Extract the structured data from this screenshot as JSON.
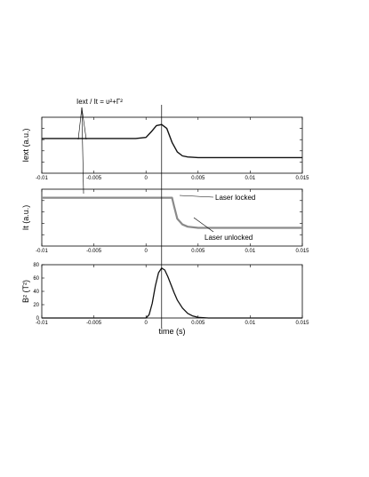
{
  "chart_data": [
    {
      "type": "line",
      "panel": "top",
      "ylabel": "Iext (a.u.)",
      "xlim": [
        -0.01,
        0.015
      ],
      "x_ticks": [
        "-0.01",
        "-0.005",
        "0",
        "0.005",
        "0.01",
        "0.015"
      ],
      "y_ticks": [],
      "annotations": [
        "Iext / It = υ²+Γ²"
      ],
      "series": [
        {
          "x": [
            -0.01,
            -0.005,
            -0.001,
            0.0,
            0.0005,
            0.001,
            0.0015,
            0.002,
            0.0025,
            0.003,
            0.0035,
            0.004,
            0.005,
            0.01,
            0.015
          ],
          "y": [
            0.62,
            0.62,
            0.62,
            0.64,
            0.74,
            0.85,
            0.87,
            0.8,
            0.55,
            0.38,
            0.31,
            0.29,
            0.28,
            0.28,
            0.28
          ]
        }
      ]
    },
    {
      "type": "line",
      "panel": "middle",
      "ylabel": "It (a.u.)",
      "xlim": [
        -0.01,
        0.015
      ],
      "x_ticks": [
        "-0.01",
        "-0.005",
        "0",
        "0.005",
        "0.01",
        "0.015"
      ],
      "y_ticks": [],
      "annotations": [
        "Laser locked",
        "Laser unlocked"
      ],
      "series": [
        {
          "x": [
            -0.01,
            0.0,
            0.0025,
            0.0027,
            0.003,
            0.0035,
            0.004,
            0.005,
            0.01,
            0.015
          ],
          "y": [
            0.85,
            0.85,
            0.85,
            0.7,
            0.48,
            0.38,
            0.34,
            0.32,
            0.32,
            0.32
          ]
        }
      ]
    },
    {
      "type": "line",
      "panel": "bottom",
      "ylabel": "B² (T²)",
      "xlabel": "time (s)",
      "xlim": [
        -0.01,
        0.015
      ],
      "ylim": [
        0,
        80
      ],
      "x_ticks": [
        "-0.01",
        "-0.005",
        "0",
        "0.005",
        "0.01",
        "0.015"
      ],
      "y_ticks": [
        "0",
        "20",
        "40",
        "60",
        "80"
      ],
      "series": [
        {
          "x": [
            -0.01,
            0.0,
            0.0003,
            0.0006,
            0.0009,
            0.0012,
            0.0015,
            0.0018,
            0.0021,
            0.0024,
            0.0027,
            0.003,
            0.0035,
            0.004,
            0.0045,
            0.005,
            0.006,
            0.015
          ],
          "y": [
            0,
            0,
            5,
            22,
            48,
            68,
            75,
            72,
            62,
            50,
            38,
            27,
            15,
            7,
            3,
            1,
            0,
            0
          ]
        }
      ]
    }
  ]
}
